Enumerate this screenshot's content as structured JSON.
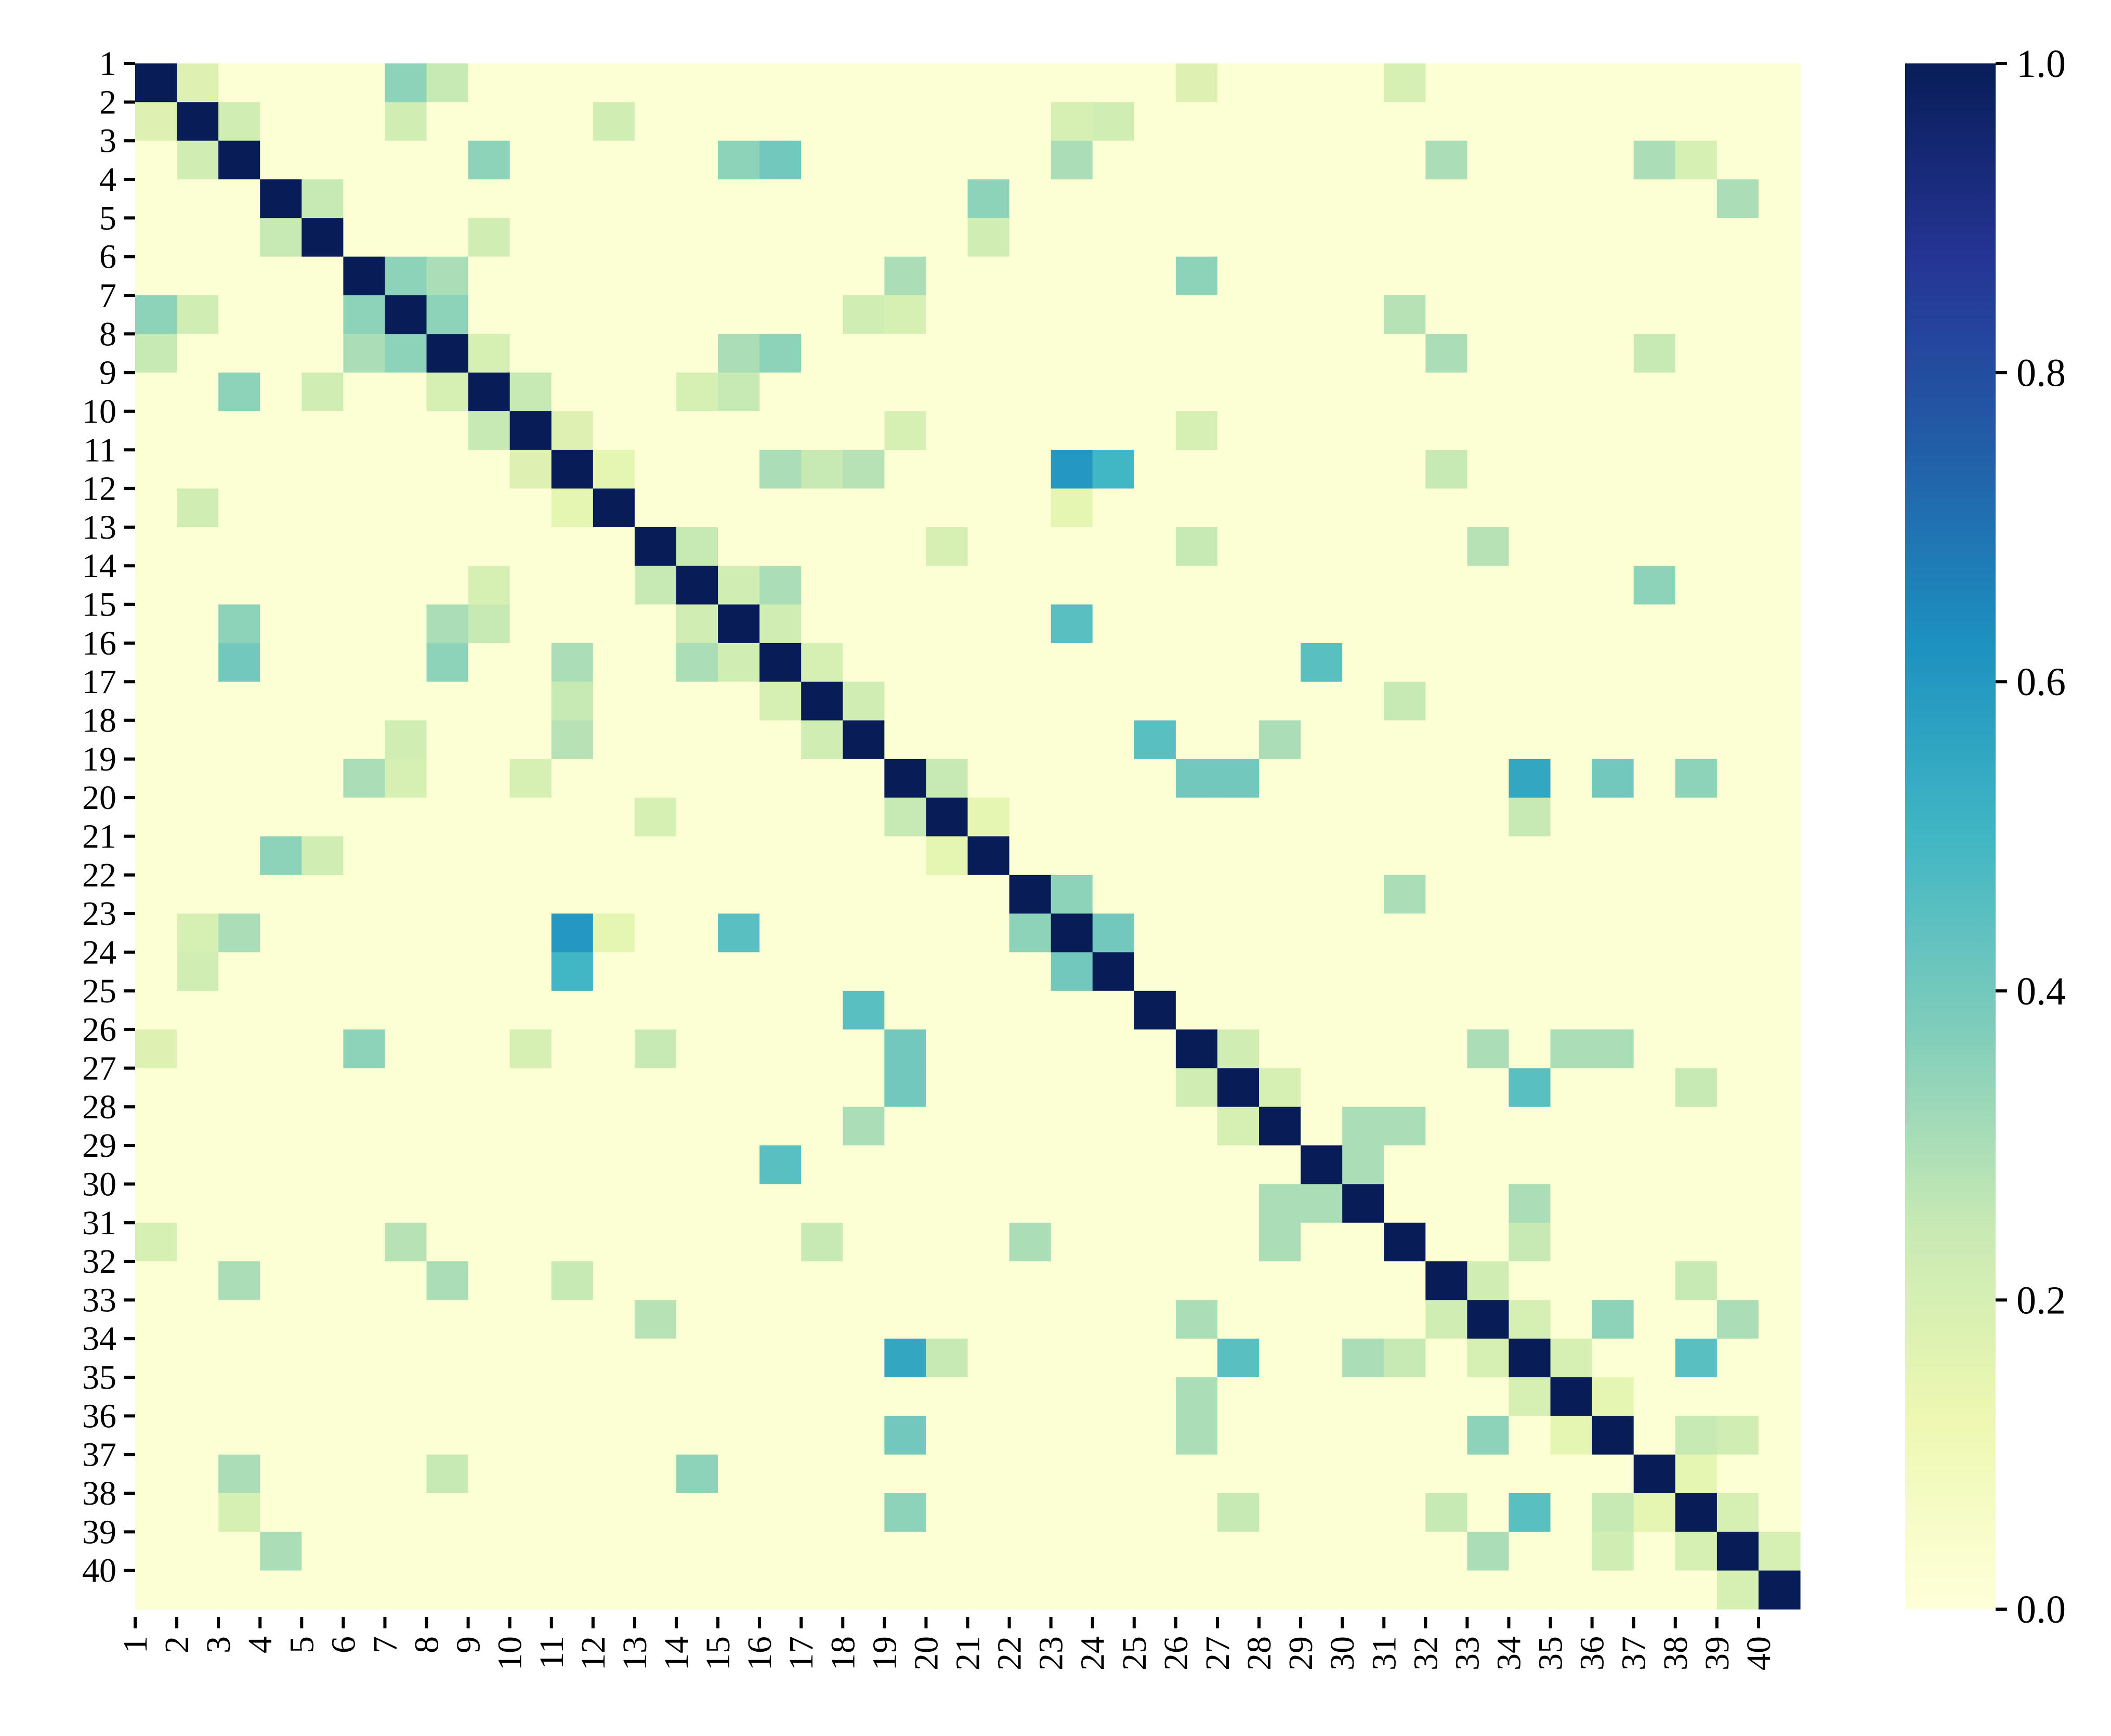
{
  "chart_data": {
    "type": "heatmap",
    "title": "",
    "xlabel": "",
    "ylabel": "",
    "categories": [
      "1",
      "2",
      "3",
      "4",
      "5",
      "6",
      "7",
      "8",
      "9",
      "10",
      "11",
      "12",
      "13",
      "14",
      "15",
      "16",
      "17",
      "18",
      "19",
      "20",
      "21",
      "22",
      "23",
      "24",
      "25",
      "26",
      "27",
      "28",
      "29",
      "30",
      "31",
      "32",
      "33",
      "34",
      "35",
      "36",
      "37",
      "38",
      "39",
      "40"
    ],
    "diagonal_value": 1.0,
    "default_value": 0.02,
    "colorbar": {
      "range": [
        0.0,
        1.0
      ],
      "ticks": [
        "0.0",
        "0.2",
        "0.4",
        "0.6",
        "0.8",
        "1.0"
      ],
      "colormap": "YlGnBu",
      "stops": [
        "#ffffd9",
        "#edf8b1",
        "#c7e9b4",
        "#7fcdbb",
        "#41b6c4",
        "#1d91c0",
        "#225ea8",
        "#253494",
        "#081d58"
      ]
    },
    "notable_pairs": [
      [
        "1",
        "7",
        0.35
      ],
      [
        "1",
        "8",
        0.25
      ],
      [
        "1",
        "2",
        0.18
      ],
      [
        "1",
        "26",
        0.18
      ],
      [
        "1",
        "31",
        0.2
      ],
      [
        "2",
        "3",
        0.22
      ],
      [
        "2",
        "7",
        0.22
      ],
      [
        "2",
        "12",
        0.22
      ],
      [
        "2",
        "23",
        0.2
      ],
      [
        "2",
        "24",
        0.22
      ],
      [
        "3",
        "9",
        0.35
      ],
      [
        "3",
        "15",
        0.35
      ],
      [
        "3",
        "16",
        0.4
      ],
      [
        "3",
        "23",
        0.3
      ],
      [
        "3",
        "32",
        0.3
      ],
      [
        "3",
        "37",
        0.3
      ],
      [
        "3",
        "38",
        0.2
      ],
      [
        "4",
        "5",
        0.25
      ],
      [
        "4",
        "21",
        0.35
      ],
      [
        "4",
        "39",
        0.3
      ],
      [
        "5",
        "9",
        0.22
      ],
      [
        "5",
        "21",
        0.22
      ],
      [
        "6",
        "7",
        0.35
      ],
      [
        "6",
        "26",
        0.35
      ],
      [
        "6",
        "8",
        0.3
      ],
      [
        "6",
        "19",
        0.3
      ],
      [
        "7",
        "8",
        0.35
      ],
      [
        "7",
        "18",
        0.22
      ],
      [
        "7",
        "19",
        0.2
      ],
      [
        "7",
        "31",
        0.28
      ],
      [
        "8",
        "9",
        0.2
      ],
      [
        "8",
        "15",
        0.3
      ],
      [
        "8",
        "16",
        0.35
      ],
      [
        "8",
        "32",
        0.3
      ],
      [
        "8",
        "37",
        0.25
      ],
      [
        "9",
        "10",
        0.25
      ],
      [
        "9",
        "14",
        0.2
      ],
      [
        "9",
        "15",
        0.25
      ],
      [
        "10",
        "11",
        0.18
      ],
      [
        "10",
        "19",
        0.2
      ],
      [
        "10",
        "26",
        0.2
      ],
      [
        "11",
        "12",
        0.15
      ],
      [
        "11",
        "16",
        0.3
      ],
      [
        "11",
        "17",
        0.25
      ],
      [
        "11",
        "18",
        0.28
      ],
      [
        "11",
        "23",
        0.6
      ],
      [
        "11",
        "24",
        0.5
      ],
      [
        "11",
        "32",
        0.25
      ],
      [
        "12",
        "23",
        0.15
      ],
      [
        "13",
        "14",
        0.25
      ],
      [
        "13",
        "33",
        0.28
      ],
      [
        "13",
        "26",
        0.25
      ],
      [
        "13",
        "20",
        0.2
      ],
      [
        "14",
        "15",
        0.22
      ],
      [
        "14",
        "16",
        0.3
      ],
      [
        "14",
        "37",
        0.35
      ],
      [
        "15",
        "16",
        0.22
      ],
      [
        "15",
        "23",
        0.45
      ],
      [
        "16",
        "17",
        0.2
      ],
      [
        "16",
        "29",
        0.45
      ],
      [
        "17",
        "18",
        0.22
      ],
      [
        "17",
        "31",
        0.25
      ],
      [
        "18",
        "25",
        0.45
      ],
      [
        "18",
        "28",
        0.3
      ],
      [
        "19",
        "20",
        0.25
      ],
      [
        "19",
        "26",
        0.4
      ],
      [
        "19",
        "27",
        0.4
      ],
      [
        "19",
        "34",
        0.55
      ],
      [
        "19",
        "36",
        0.4
      ],
      [
        "19",
        "38",
        0.35
      ],
      [
        "20",
        "21",
        0.15
      ],
      [
        "20",
        "34",
        0.25
      ],
      [
        "22",
        "23",
        0.35
      ],
      [
        "22",
        "31",
        0.3
      ],
      [
        "23",
        "24",
        0.4
      ],
      [
        "26",
        "27",
        0.22
      ],
      [
        "26",
        "33",
        0.3
      ],
      [
        "26",
        "35",
        0.3
      ],
      [
        "26",
        "36",
        0.3
      ],
      [
        "27",
        "28",
        0.2
      ],
      [
        "27",
        "34",
        0.45
      ],
      [
        "27",
        "38",
        0.25
      ],
      [
        "28",
        "30",
        0.3
      ],
      [
        "28",
        "31",
        0.3
      ],
      [
        "29",
        "30",
        0.3
      ],
      [
        "29",
        "30",
        0.3
      ],
      [
        "30",
        "34",
        0.3
      ],
      [
        "31",
        "34",
        0.25
      ],
      [
        "32",
        "33",
        0.22
      ],
      [
        "32",
        "38",
        0.25
      ],
      [
        "33",
        "34",
        0.2
      ],
      [
        "33",
        "36",
        0.35
      ],
      [
        "33",
        "39",
        0.3
      ],
      [
        "34",
        "38",
        0.45
      ],
      [
        "34",
        "35",
        0.2
      ],
      [
        "35",
        "36",
        0.15
      ],
      [
        "36",
        "38",
        0.25
      ],
      [
        "36",
        "39",
        0.22
      ],
      [
        "37",
        "38",
        0.15
      ],
      [
        "38",
        "39",
        0.2
      ],
      [
        "39",
        "40",
        0.2
      ]
    ]
  }
}
